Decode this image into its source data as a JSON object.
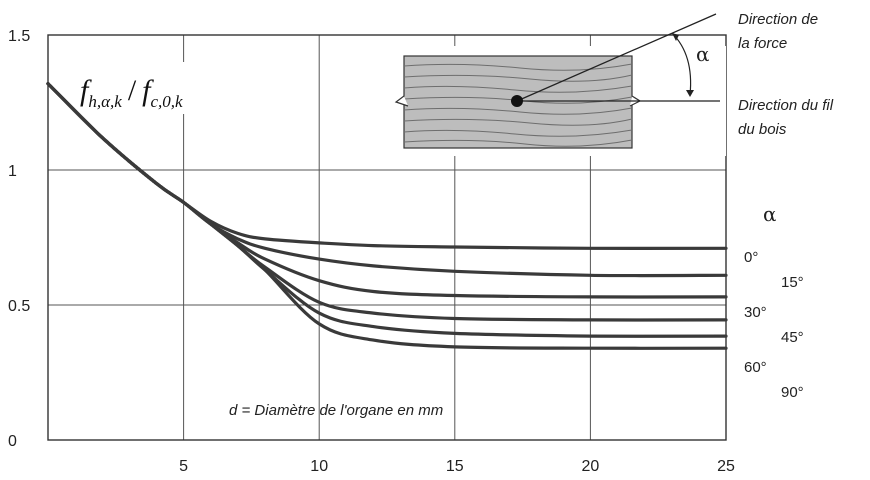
{
  "chart_data": {
    "type": "line",
    "title_parts": {
      "f1": "f",
      "sub1": "h,α,k",
      "slash": "/",
      "f2": "f",
      "sub2": "c,0,k"
    },
    "xlim": [
      0,
      25
    ],
    "ylim": [
      0,
      1.5
    ],
    "x_ticks": [
      {
        "value": 5,
        "label": "5"
      },
      {
        "value": 10,
        "label": "10"
      },
      {
        "value": 15,
        "label": "15"
      },
      {
        "value": 20,
        "label": "20"
      },
      {
        "value": 25,
        "label": "25"
      }
    ],
    "y_ticks": [
      {
        "value": 0,
        "label": "0"
      },
      {
        "value": 0.5,
        "label": "0.5"
      },
      {
        "value": 1,
        "label": "1"
      },
      {
        "value": 1.5,
        "label": "1.5"
      }
    ],
    "grid": true,
    "x_annotation": "d = Diamètre de l'organe en mm",
    "legend_header": "α",
    "series": [
      {
        "name": "0°",
        "x": [
          0,
          2,
          4,
          5,
          6,
          7,
          8,
          10,
          12,
          15,
          20,
          25
        ],
        "y": [
          1.32,
          1.12,
          0.95,
          0.88,
          0.81,
          0.765,
          0.745,
          0.73,
          0.72,
          0.715,
          0.71,
          0.71
        ]
      },
      {
        "name": "15°",
        "x": [
          0,
          2,
          4,
          5,
          6,
          7,
          8,
          10,
          12,
          15,
          20,
          25
        ],
        "y": [
          1.32,
          1.12,
          0.95,
          0.88,
          0.8,
          0.745,
          0.71,
          0.67,
          0.645,
          0.625,
          0.61,
          0.61
        ]
      },
      {
        "name": "30°",
        "x": [
          0,
          2,
          4,
          5,
          6,
          7,
          8,
          10,
          12,
          15,
          20,
          25
        ],
        "y": [
          1.32,
          1.12,
          0.95,
          0.88,
          0.8,
          0.73,
          0.67,
          0.59,
          0.55,
          0.535,
          0.53,
          0.53
        ]
      },
      {
        "name": "45°",
        "x": [
          0,
          2,
          4,
          5,
          6,
          7,
          8,
          10,
          12,
          15,
          20,
          25
        ],
        "y": [
          1.32,
          1.12,
          0.95,
          0.88,
          0.8,
          0.72,
          0.64,
          0.51,
          0.47,
          0.45,
          0.445,
          0.445
        ]
      },
      {
        "name": "60°",
        "x": [
          0,
          2,
          4,
          5,
          6,
          7,
          8,
          10,
          12,
          15,
          20,
          25
        ],
        "y": [
          1.32,
          1.12,
          0.95,
          0.88,
          0.8,
          0.72,
          0.63,
          0.47,
          0.42,
          0.395,
          0.385,
          0.385
        ]
      },
      {
        "name": "90°",
        "x": [
          0,
          2,
          4,
          5,
          6,
          7,
          8,
          10,
          12,
          15,
          20,
          25
        ],
        "y": [
          1.32,
          1.12,
          0.95,
          0.88,
          0.8,
          0.72,
          0.63,
          0.43,
          0.37,
          0.345,
          0.34,
          0.34
        ]
      }
    ],
    "inset": {
      "force_label": [
        "Direction de",
        "la force"
      ],
      "grain_label": [
        "Direction du fil",
        "du bois"
      ],
      "angle_symbol": "α"
    },
    "colors": {
      "curve": "#3a3a3a",
      "grid": "#555555",
      "wood": "#bdbdbd"
    }
  }
}
